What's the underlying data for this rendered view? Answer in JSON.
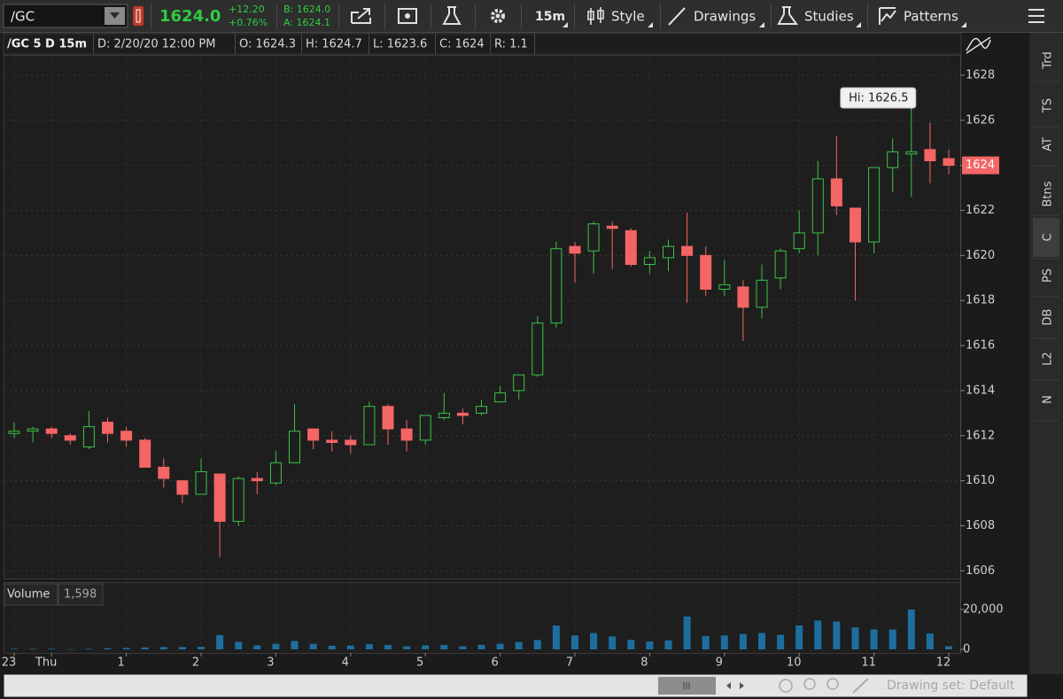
{
  "toolbar": {
    "symbol": "/GC",
    "last": "1624.0",
    "change": "+12.20",
    "change_pct": "+0.76%",
    "bid": "B: 1624.0",
    "ask": "A: 1624.1",
    "aggregation": "15m",
    "buttons": [
      "Style",
      "Drawings",
      "Studies",
      "Patterns"
    ]
  },
  "header": {
    "study": "/GC 5 D 15m",
    "fields": [
      "D: 2/20/20 12:00 PM",
      "O: 1624.3",
      "H: 1624.7",
      "L: 1623.6",
      "C: 1624",
      "R: 1.1"
    ]
  },
  "chart_data": [
    {
      "type": "candlestick",
      "title": "/GC 5 D 15m",
      "categories": [
        "23",
        null,
        "Thu",
        null,
        null,
        null,
        "1",
        null,
        null,
        null,
        "2",
        null,
        null,
        null,
        "3",
        null,
        null,
        null,
        "4",
        null,
        null,
        null,
        "5",
        null,
        null,
        null,
        "6",
        null,
        null,
        null,
        "7",
        null,
        null,
        null,
        "8",
        null,
        null,
        null,
        "9",
        null,
        null,
        null,
        "10",
        null,
        null,
        null,
        "11",
        null,
        null,
        null,
        "12"
      ],
      "open": [
        1612.1,
        1612.2,
        1612.3,
        1612.0,
        1611.5,
        1612.6,
        1612.2,
        1611.8,
        1610.6,
        1610.0,
        1609.4,
        1610.3,
        1608.2,
        1610.1,
        1609.9,
        1610.8,
        1612.3,
        1611.8,
        1611.8,
        1611.6,
        1613.3,
        1612.3,
        1611.8,
        1612.8,
        1613.0,
        1613.0,
        1613.5,
        1614.0,
        1614.7,
        1617.0,
        1620.4,
        1620.2,
        1621.3,
        1621.1,
        1619.6,
        1619.9,
        1620.4,
        1620.0,
        1618.5,
        1618.6,
        1617.7,
        1619.0,
        1620.3,
        1621.0,
        1623.4,
        1622.1,
        1620.6,
        1623.9,
        1624.5,
        1624.7,
        1624.3
      ],
      "high": [
        1612.6,
        1612.4,
        1612.4,
        1612.1,
        1613.1,
        1612.8,
        1612.4,
        1611.9,
        1611.0,
        1610.0,
        1611.0,
        1610.3,
        1610.2,
        1610.4,
        1611.3,
        1613.4,
        1612.3,
        1612.2,
        1612.0,
        1613.5,
        1613.4,
        1612.7,
        1612.9,
        1613.9,
        1613.2,
        1613.6,
        1614.2,
        1614.7,
        1617.3,
        1620.6,
        1620.6,
        1621.5,
        1621.5,
        1621.2,
        1620.2,
        1620.7,
        1621.9,
        1620.4,
        1619.8,
        1618.9,
        1619.6,
        1620.3,
        1622.0,
        1624.2,
        1625.3,
        1622.1,
        1623.9,
        1625.2,
        1626.5,
        1625.9,
        1624.7
      ],
      "low": [
        1611.9,
        1611.7,
        1611.9,
        1611.6,
        1611.4,
        1611.7,
        1611.5,
        1610.6,
        1609.7,
        1609.0,
        1609.4,
        1606.6,
        1608.0,
        1609.4,
        1609.8,
        1610.8,
        1611.4,
        1611.3,
        1611.2,
        1611.6,
        1611.6,
        1611.3,
        1611.6,
        1612.7,
        1612.5,
        1612.9,
        1613.5,
        1613.6,
        1614.6,
        1616.8,
        1618.8,
        1619.2,
        1619.4,
        1619.5,
        1619.2,
        1619.3,
        1617.9,
        1618.2,
        1618.2,
        1616.2,
        1617.2,
        1618.5,
        1620.1,
        1620.0,
        1621.8,
        1618.0,
        1620.1,
        1622.8,
        1622.6,
        1623.2,
        1623.6
      ],
      "close": [
        1612.2,
        1612.3,
        1612.1,
        1611.8,
        1612.4,
        1612.1,
        1611.8,
        1610.6,
        1610.1,
        1609.4,
        1610.4,
        1608.2,
        1610.1,
        1610.0,
        1610.8,
        1612.2,
        1611.8,
        1611.7,
        1611.6,
        1613.3,
        1612.3,
        1611.8,
        1612.9,
        1613.0,
        1612.9,
        1613.3,
        1613.9,
        1614.7,
        1617.0,
        1620.3,
        1620.1,
        1621.4,
        1621.2,
        1619.6,
        1619.9,
        1620.4,
        1620.0,
        1618.5,
        1618.7,
        1617.7,
        1618.9,
        1620.2,
        1621.0,
        1623.4,
        1622.2,
        1620.6,
        1623.9,
        1624.6,
        1624.6,
        1624.2,
        1624
      ],
      "up_color": "#3cc24a",
      "down_color": "#f46565",
      "ylim": [
        1605.7,
        1628.9
      ],
      "yticks": [
        1606,
        1608,
        1610,
        1612,
        1614,
        1616,
        1618,
        1620,
        1622,
        1624,
        1626,
        1628
      ],
      "grid": true,
      "last_price": {
        "value": 1624,
        "label": "1624"
      },
      "annotation": {
        "value": 1626.5,
        "label": "Hi: 1626.5"
      }
    },
    {
      "type": "bar",
      "title": "Volume",
      "color": "#1d6e9e",
      "values": [
        300,
        300,
        300,
        100,
        300,
        600,
        700,
        1000,
        1200,
        1200,
        1300,
        7200,
        3800,
        2000,
        2800,
        4200,
        2800,
        1800,
        1900,
        2600,
        2200,
        1500,
        2000,
        2200,
        1500,
        2300,
        2800,
        3700,
        4700,
        12000,
        7000,
        8200,
        6500,
        4800,
        4000,
        4500,
        16500,
        6700,
        7000,
        7700,
        8200,
        7300,
        12000,
        14500,
        14000,
        11000,
        10000,
        10000,
        20000,
        8000,
        1598
      ],
      "last_value": {
        "value": 1598,
        "label": "1,598"
      },
      "ylim": [
        0,
        20000
      ],
      "yticks": [
        0,
        {
          "value": 20000,
          "label": "20,000"
        }
      ]
    }
  ],
  "side_tabs": [
    "Trd",
    "TS",
    "AT",
    "Btns",
    "C",
    "PS",
    "DB",
    "L2",
    "N"
  ],
  "footer": {
    "drawing_set": "Drawing set: Default"
  }
}
